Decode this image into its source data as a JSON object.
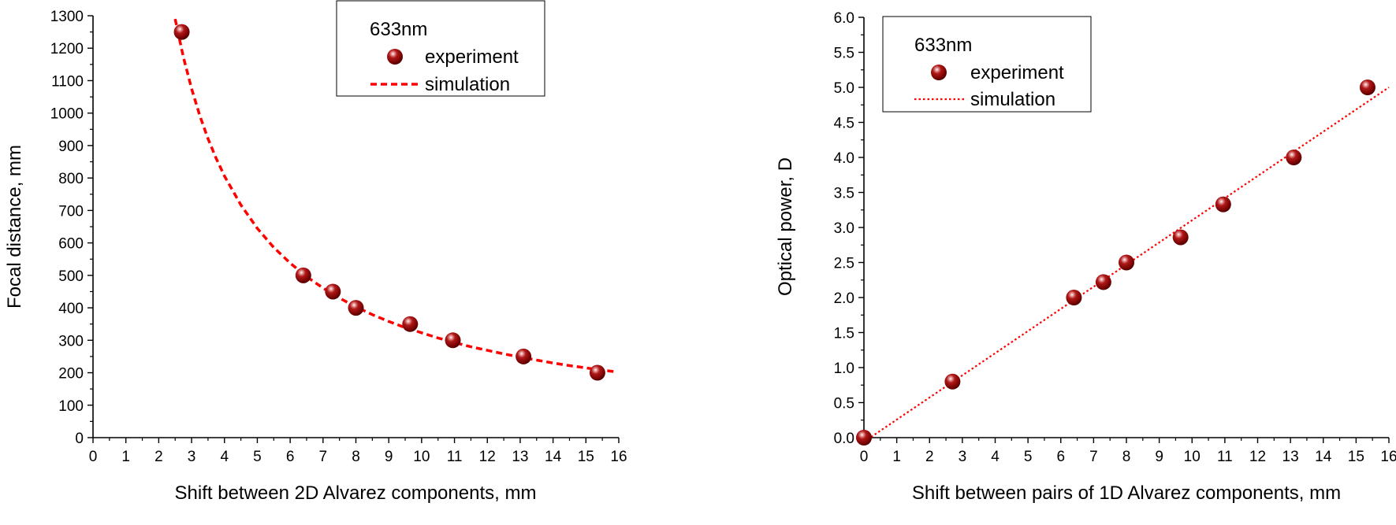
{
  "chart_data": [
    {
      "type": "scatter",
      "xlabel": "Shift between 2D Alvarez components, mm",
      "ylabel": "Focal distance, mm",
      "xlim": [
        0,
        16
      ],
      "ylim": [
        0,
        1300
      ],
      "xticks": [
        0,
        1,
        2,
        3,
        4,
        5,
        6,
        7,
        8,
        9,
        10,
        11,
        12,
        13,
        14,
        15,
        16
      ],
      "yticks": [
        0,
        100,
        200,
        300,
        400,
        500,
        600,
        700,
        800,
        900,
        1000,
        1100,
        1200,
        1300
      ],
      "legend_placement": "top-center",
      "legend_title": "633nm",
      "series": [
        {
          "name": "experiment",
          "kind": "points",
          "color": "#8b0000",
          "x": [
            2.7,
            6.4,
            7.3,
            8.0,
            9.65,
            10.95,
            13.1,
            15.35
          ],
          "y": [
            1250,
            500,
            450,
            400,
            350,
            300,
            250,
            200
          ]
        },
        {
          "name": "simulation",
          "kind": "dashed-line",
          "color": "#ff0000",
          "x": [
            2.5,
            2.75,
            3,
            3.25,
            3.5,
            3.75,
            4,
            4.5,
            5,
            5.5,
            6,
            6.5,
            7,
            7.5,
            8,
            8.5,
            9,
            9.5,
            10,
            10.5,
            11,
            11.5,
            12,
            12.5,
            13,
            13.5,
            14,
            14.5,
            15,
            15.5,
            15.9
          ],
          "y": [
            1290,
            1173,
            1075,
            992,
            921,
            860,
            806,
            717,
            645,
            586,
            538,
            496,
            461,
            430,
            403,
            379,
            358,
            339,
            323,
            307,
            293,
            280,
            269,
            258,
            248,
            239,
            230,
            222,
            215,
            208,
            203
          ]
        }
      ]
    },
    {
      "type": "scatter",
      "xlabel": "Shift between pairs of 1D Alvarez components, mm",
      "ylabel": "Optical power, D",
      "xlim": [
        0,
        16
      ],
      "ylim": [
        0,
        6
      ],
      "xticks": [
        0,
        1,
        2,
        3,
        4,
        5,
        6,
        7,
        8,
        9,
        10,
        11,
        12,
        13,
        14,
        15,
        16
      ],
      "yticks": [
        "0.0",
        "0.5",
        "1.0",
        "1.5",
        "2.0",
        "2.5",
        "3.0",
        "3.5",
        "4.0",
        "4.5",
        "5.0",
        "5.5",
        "6.0"
      ],
      "legend_placement": "top-left",
      "legend_title": "633nm",
      "series": [
        {
          "name": "experiment",
          "kind": "points",
          "color": "#8b0000",
          "x": [
            0,
            2.7,
            6.4,
            7.3,
            8.0,
            9.65,
            10.95,
            13.1,
            15.35
          ],
          "y": [
            0,
            0.8,
            2.0,
            2.22,
            2.5,
            2.86,
            3.33,
            4.0,
            5.0
          ]
        },
        {
          "name": "simulation",
          "kind": "dotted-line",
          "color": "#ff0000",
          "x": [
            0,
            16
          ],
          "y": [
            -0.06,
            5.0
          ]
        }
      ]
    }
  ]
}
